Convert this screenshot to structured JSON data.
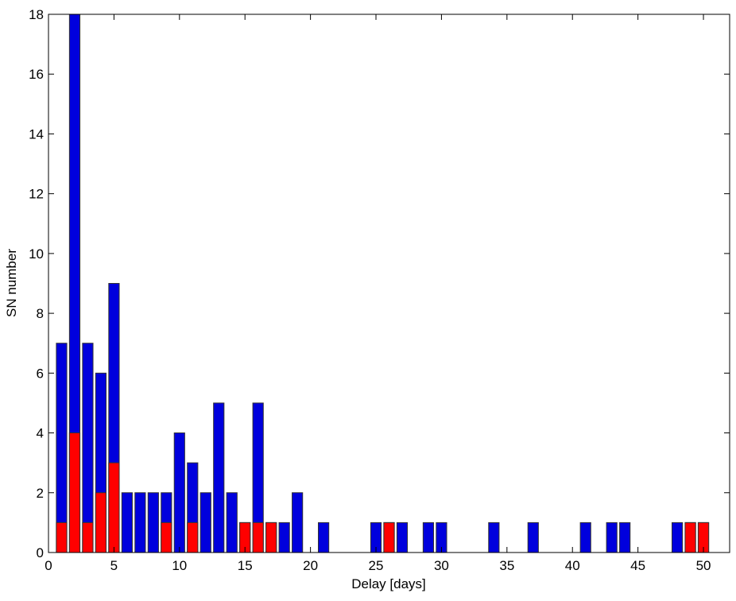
{
  "chart_data": {
    "type": "bar",
    "x_label": "Delay [days]",
    "y_label": "SN number",
    "x": [
      1,
      2,
      3,
      4,
      5,
      6,
      7,
      8,
      9,
      10,
      11,
      12,
      13,
      14,
      15,
      16,
      17,
      18,
      19,
      20,
      21,
      22,
      23,
      24,
      25,
      26,
      27,
      28,
      29,
      30,
      31,
      32,
      33,
      34,
      35,
      36,
      37,
      38,
      39,
      40,
      41,
      42,
      43,
      44,
      45,
      46,
      47,
      48,
      49,
      50
    ],
    "series": [
      {
        "color": "#0000dd",
        "values": [
          7,
          18,
          7,
          6,
          9,
          2,
          2,
          2,
          2,
          4,
          3,
          2,
          5,
          2,
          1,
          5,
          1,
          1,
          2,
          0,
          1,
          0,
          0,
          0,
          1,
          1,
          1,
          0,
          1,
          1,
          0,
          0,
          0,
          1,
          0,
          0,
          1,
          0,
          0,
          0,
          1,
          0,
          1,
          1,
          0,
          0,
          0,
          1,
          1,
          1
        ]
      },
      {
        "color": "#ff0000",
        "values": [
          1,
          4,
          1,
          2,
          3,
          0,
          0,
          0,
          1,
          0,
          1,
          0,
          0,
          0,
          1,
          1,
          1,
          0,
          0,
          0,
          0,
          0,
          0,
          0,
          0,
          1,
          0,
          0,
          0,
          0,
          0,
          0,
          0,
          0,
          0,
          0,
          0,
          0,
          0,
          0,
          0,
          0,
          0,
          0,
          0,
          0,
          0,
          0,
          1,
          1
        ]
      }
    ],
    "xlim": [
      0,
      52
    ],
    "xticks": [
      0,
      5,
      10,
      15,
      20,
      25,
      30,
      35,
      40,
      45,
      50
    ],
    "ylim": [
      0,
      18
    ],
    "yticks": [
      0,
      2,
      4,
      6,
      8,
      10,
      12,
      14,
      16,
      18
    ]
  }
}
